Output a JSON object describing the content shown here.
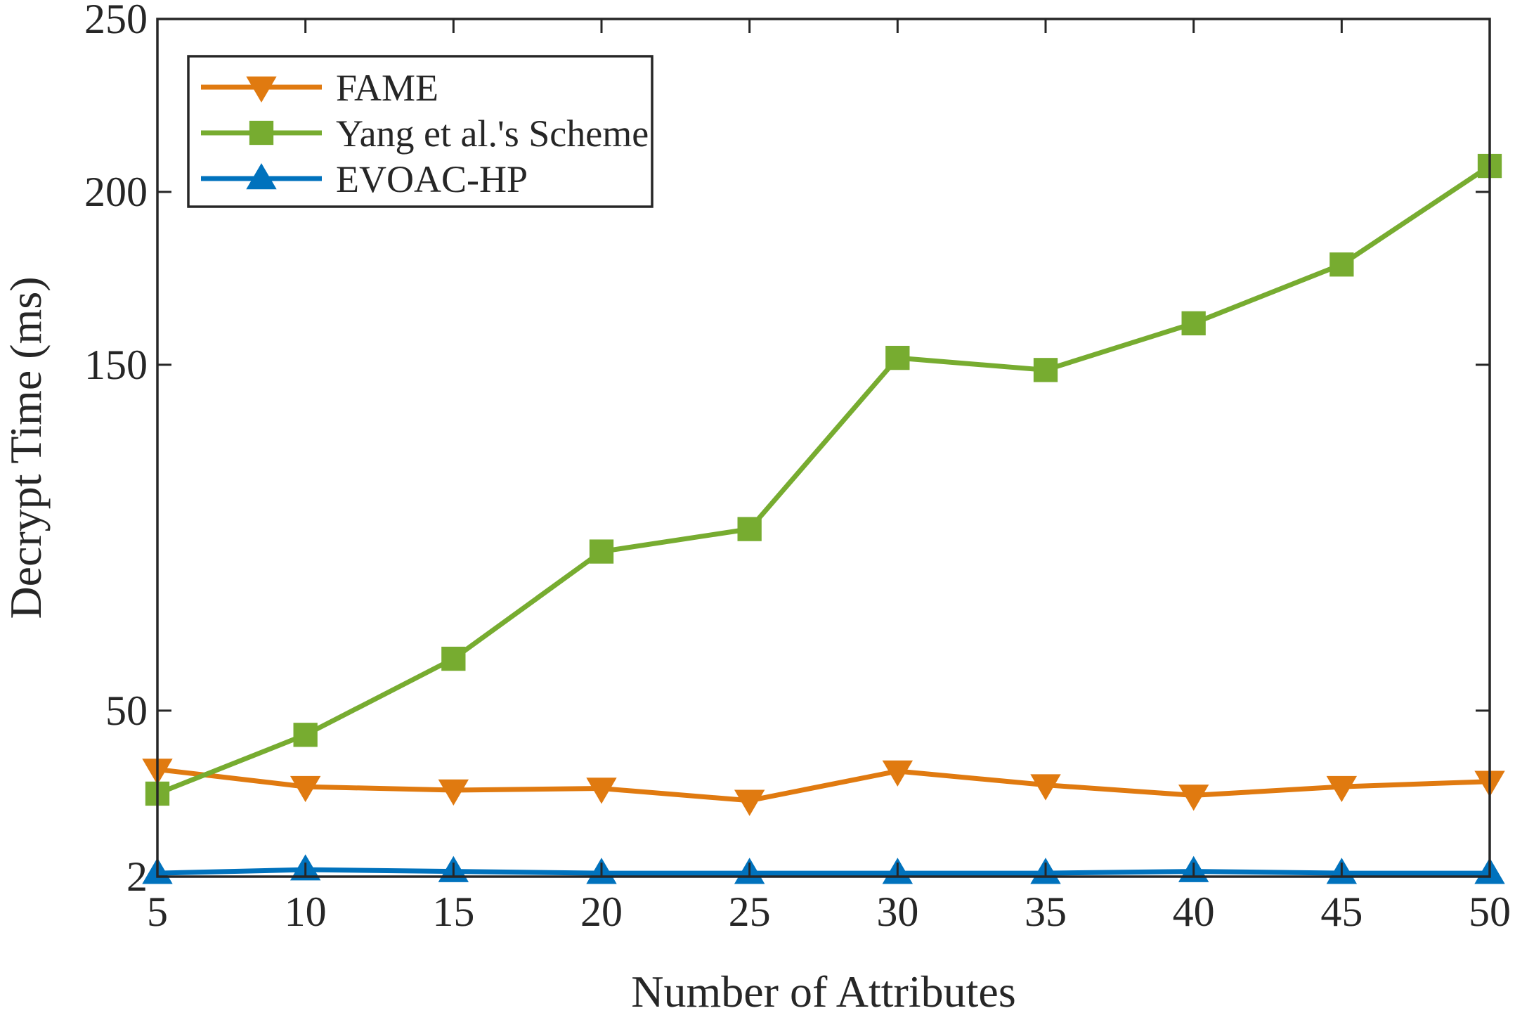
{
  "chart_data": {
    "type": "line",
    "title": "",
    "xlabel": "Number of Attributes",
    "ylabel": "Decrypt Time (ms)",
    "x": [
      5,
      10,
      15,
      20,
      25,
      30,
      35,
      40,
      45,
      50
    ],
    "xlim": [
      5,
      50
    ],
    "ylim": [
      2,
      250
    ],
    "xticks": [
      "5",
      "10",
      "15",
      "20",
      "25",
      "30",
      "35",
      "40",
      "45",
      "50"
    ],
    "yticks": [
      {
        "value": 2,
        "label": "2"
      },
      {
        "value": 50,
        "label": "50"
      },
      {
        "value": 150,
        "label": "150"
      },
      {
        "value": 200,
        "label": "200"
      },
      {
        "value": 250,
        "label": "250"
      }
    ],
    "grid": false,
    "legend_position": "top-left",
    "series": [
      {
        "name": "FAME",
        "color": "#D95319",
        "display_color": "#E07A10",
        "marker": "triangle-down",
        "values": [
          33,
          28,
          27,
          27.5,
          24,
          32.5,
          28.5,
          25.5,
          28,
          29.5
        ]
      },
      {
        "name": "Yang et al.'s Scheme",
        "color": "#77AC30",
        "marker": "square",
        "values": [
          26,
          43,
          65,
          96,
          102.5,
          152,
          148.5,
          162,
          179,
          207.5
        ]
      },
      {
        "name": "EVOAC-HP",
        "color": "#0072BD",
        "marker": "triangle-up",
        "values": [
          3,
          4,
          3.5,
          3,
          3,
          3,
          3,
          3.5,
          3,
          3
        ]
      }
    ]
  }
}
